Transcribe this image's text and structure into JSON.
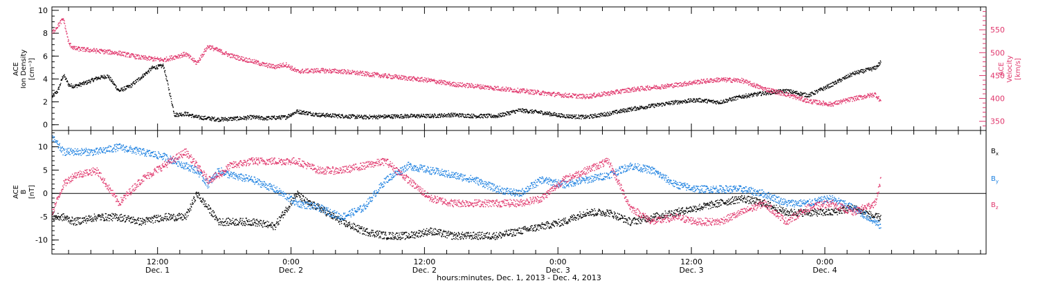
{
  "chart_data": [
    {
      "type": "scatter",
      "panel": "top",
      "ylabel_left": {
        "line1": "ACE",
        "line2": "Ion Density",
        "line3": "[cm⁻³]"
      },
      "ylabel_right": {
        "line1": "ACE",
        "line2": "Velocity",
        "line3": "[km/s]"
      },
      "ylim_left": [
        -0.5,
        10.3
      ],
      "ylim_right": [
        330,
        600
      ],
      "yticks_left": [
        0,
        2,
        4,
        6,
        8,
        10
      ],
      "yticks_right": [
        350,
        400,
        450,
        500,
        550
      ],
      "colors": {
        "density": "#000000",
        "velocity": "#e0356b"
      },
      "series": [
        {
          "key": "density",
          "axis": "left",
          "x_hours": [
            0,
            0.5,
            1,
            1.5,
            2,
            3,
            4,
            5,
            6,
            7,
            8,
            9,
            10,
            11,
            12,
            13,
            14,
            15,
            16,
            17,
            18,
            19,
            20,
            21,
            22,
            24,
            26,
            28,
            30,
            32,
            34,
            36,
            38,
            40,
            42,
            44,
            46,
            48,
            50,
            52,
            54,
            56,
            58,
            60,
            62,
            64,
            66,
            68,
            70,
            72,
            74,
            74.5
          ],
          "values": [
            2.5,
            3.0,
            4.4,
            3.5,
            3.4,
            3.7,
            4.1,
            4.3,
            3.0,
            3.4,
            4.2,
            5.0,
            5.2,
            0.9,
            1.0,
            0.7,
            0.6,
            0.5,
            0.55,
            0.6,
            0.7,
            0.6,
            0.65,
            0.7,
            1.2,
            0.9,
            0.8,
            0.7,
            0.75,
            0.8,
            0.8,
            0.9,
            0.8,
            0.8,
            1.3,
            1.1,
            0.8,
            0.7,
            1.0,
            1.4,
            1.7,
            2.0,
            2.2,
            2.0,
            2.5,
            2.8,
            3.0,
            2.6,
            3.5,
            4.5,
            5.0,
            5.5
          ]
        },
        {
          "key": "velocity",
          "axis": "right",
          "x_hours": [
            0,
            0.5,
            1,
            1.5,
            2,
            4,
            6,
            8,
            10,
            12,
            13,
            14,
            15,
            16,
            17,
            18,
            19,
            20,
            21,
            22,
            24,
            26,
            28,
            30,
            32,
            34,
            36,
            38,
            40,
            42,
            44,
            46,
            48,
            50,
            52,
            54,
            56,
            58,
            60,
            62,
            64,
            66,
            68,
            70,
            72,
            74,
            74.5
          ],
          "values": [
            545,
            560,
            575,
            520,
            510,
            505,
            500,
            490,
            485,
            498,
            478,
            515,
            505,
            495,
            488,
            482,
            475,
            470,
            475,
            460,
            462,
            460,
            455,
            450,
            445,
            440,
            432,
            428,
            423,
            418,
            413,
            408,
            405,
            412,
            420,
            425,
            430,
            437,
            442,
            440,
            422,
            410,
            395,
            388,
            400,
            410,
            395
          ]
        }
      ]
    },
    {
      "type": "scatter",
      "panel": "bottom",
      "ylabel_left": {
        "line1": "ACE",
        "line2": "B",
        "line3": "[nT]"
      },
      "ylim": [
        -13,
        13.5
      ],
      "yticks": [
        -10,
        -5,
        0,
        5,
        10
      ],
      "zero_line": true,
      "legend": [
        {
          "key": "bx",
          "label": "B",
          "sub": "x",
          "color": "#000000"
        },
        {
          "key": "by",
          "label": "B",
          "sub": "y",
          "color": "#1a7fe0"
        },
        {
          "key": "bz",
          "label": "B",
          "sub": "z",
          "color": "#e0356b"
        }
      ],
      "series": [
        {
          "key": "bx",
          "x_hours": [
            0,
            1,
            2,
            4,
            6,
            8,
            10,
            12,
            13,
            14,
            15,
            16,
            18,
            20,
            22,
            23,
            24,
            26,
            28,
            30,
            32,
            34,
            36,
            38,
            40,
            42,
            44,
            46,
            48,
            50,
            52,
            54,
            56,
            58,
            60,
            62,
            64,
            66,
            68,
            70,
            72,
            74,
            74.5
          ],
          "values": [
            -5,
            -5,
            -6,
            -5,
            -5,
            -6,
            -5,
            -5,
            0,
            -3,
            -6,
            -6,
            -6,
            -7,
            0,
            -2,
            -3,
            -6,
            -8,
            -9,
            -9,
            -8,
            -9,
            -9,
            -9,
            -8,
            -7,
            -6,
            -4,
            -4,
            -6,
            -5,
            -4,
            -3,
            -2,
            -1,
            -2,
            -4,
            -4,
            -4,
            -3,
            -5,
            -5
          ]
        },
        {
          "key": "by",
          "x_hours": [
            0,
            1,
            2,
            4,
            6,
            8,
            10,
            12,
            13,
            14,
            15,
            16,
            18,
            20,
            22,
            24,
            26,
            28,
            30,
            32,
            34,
            36,
            38,
            40,
            42,
            44,
            46,
            48,
            50,
            52,
            54,
            56,
            58,
            60,
            62,
            64,
            66,
            68,
            70,
            72,
            74,
            74.5
          ],
          "values": [
            12,
            9,
            9,
            9,
            10,
            9,
            8,
            6,
            5,
            2,
            5,
            4,
            3,
            1,
            -2,
            -3,
            -5,
            -3,
            3,
            6,
            5,
            4,
            3,
            1,
            0,
            3,
            2,
            3,
            4,
            6,
            5,
            2,
            1,
            1,
            1,
            0,
            -2,
            -2,
            -1,
            -3,
            -6,
            -7
          ]
        },
        {
          "key": "bz",
          "x_hours": [
            0,
            1,
            2,
            4,
            6,
            8,
            10,
            12,
            13,
            14,
            15,
            16,
            18,
            20,
            22,
            24,
            26,
            28,
            30,
            32,
            34,
            36,
            38,
            40,
            42,
            44,
            46,
            48,
            50,
            52,
            54,
            56,
            58,
            60,
            62,
            64,
            66,
            68,
            70,
            72,
            74,
            74.5
          ],
          "values": [
            -4,
            2,
            4,
            5,
            -2,
            3,
            6,
            9,
            6,
            3,
            4,
            6,
            7,
            7,
            7,
            5,
            5,
            6,
            7,
            3,
            -1,
            -2,
            -2,
            -2,
            -2,
            -1,
            3,
            5,
            7,
            -3,
            -6,
            -5,
            -6,
            -6,
            -4,
            -2,
            -6,
            -3,
            -2,
            -4,
            -2,
            3
          ]
        }
      ]
    }
  ],
  "x_axis": {
    "range_hours": [
      0,
      84
    ],
    "major_ticks": [
      {
        "hour": 9.5,
        "time": "12:00",
        "day": "Dec. 1"
      },
      {
        "hour": 21.5,
        "time": "0:00",
        "day": "Dec. 2"
      },
      {
        "hour": 33.5,
        "time": "12:00",
        "day": "Dec. 2"
      },
      {
        "hour": 45.5,
        "time": "0:00",
        "day": "Dec. 3"
      },
      {
        "hour": 57.5,
        "time": "12:00",
        "day": "Dec. 3"
      },
      {
        "hour": 69.5,
        "time": "0:00",
        "day": "Dec. 4"
      }
    ],
    "title": "hours:minutes, Dec.  1, 2013 - Dec.  4, 2013"
  }
}
